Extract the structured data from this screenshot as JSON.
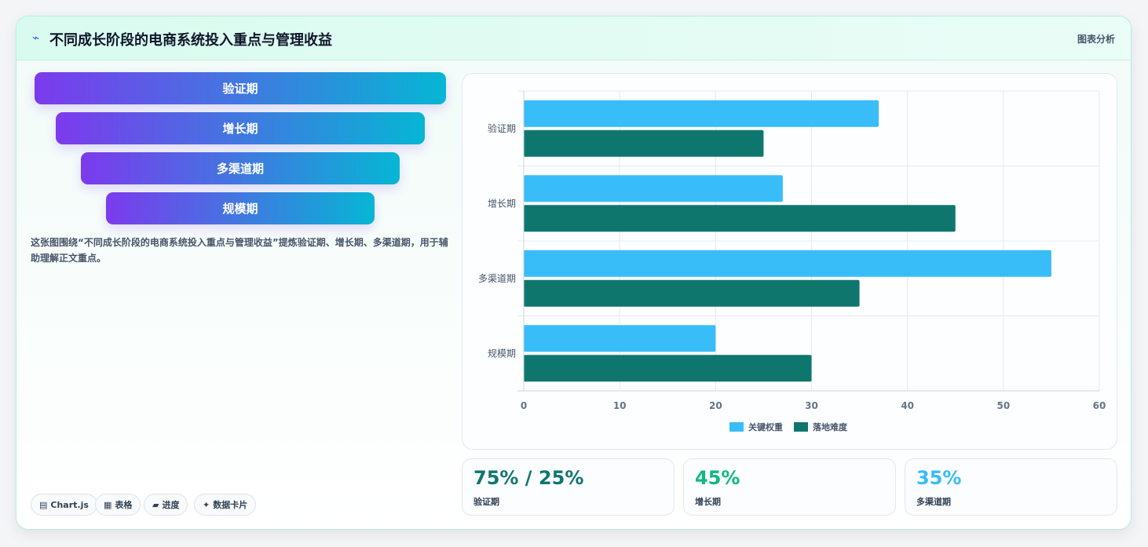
{
  "header": {
    "icon": "bolt-icon",
    "title": "不同成长阶段的电商系统投入重点与管理收益",
    "tag": "图表分析"
  },
  "funnel": [
    "验证期",
    "增长期",
    "多渠道期",
    "规模期"
  ],
  "description": "这张图围绕“不同成长阶段的电商系统投入重点与管理收益”提炼验证期、增长期、多渠道期，用于辅助理解正文重点。",
  "pills": [
    {
      "icon": "▤",
      "label": "Chart.js"
    },
    {
      "icon": "▦",
      "label": "表格"
    },
    {
      "icon": "▰",
      "label": "进度"
    },
    {
      "icon": "✦",
      "label": "数据卡片"
    }
  ],
  "stats": [
    {
      "value": "75% / 25%",
      "label": "验证期",
      "color": "#0f766e"
    },
    {
      "value": "45%",
      "label": "增长期",
      "color": "#10b981"
    },
    {
      "value": "35%",
      "label": "多渠道期",
      "color": "#38bdf8"
    }
  ],
  "chart_data": {
    "type": "bar",
    "orientation": "horizontal",
    "categories": [
      "验证期",
      "增长期",
      "多渠道期",
      "规模期"
    ],
    "series": [
      {
        "name": "关键权重",
        "values": [
          37,
          27,
          55,
          20
        ],
        "color": "#38bdf8"
      },
      {
        "name": "落地难度",
        "values": [
          25,
          45,
          35,
          30
        ],
        "color": "#0f766e"
      }
    ],
    "xlim": [
      0,
      60
    ],
    "xticks": [
      0,
      10,
      20,
      30,
      40,
      50,
      60
    ],
    "grid": true,
    "legend": "bottom"
  }
}
